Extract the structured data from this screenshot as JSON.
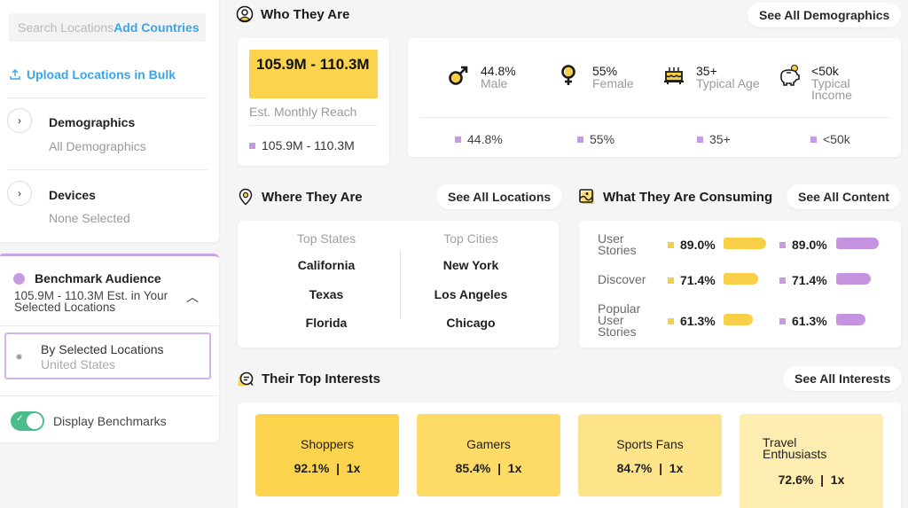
{
  "sidebar": {
    "search": {
      "placeholder": "Search Locations",
      "add_link": "Add Countries"
    },
    "upload_link": "Upload Locations in Bulk",
    "sections": [
      {
        "title": "Demographics",
        "subtitle": "All Demographics"
      },
      {
        "title": "Devices",
        "subtitle": "None Selected"
      }
    ],
    "benchmark": {
      "title": "Benchmark Audience",
      "subtitle": "105.9M - 110.3M Est. in Your Selected Locations",
      "option_title": "By Selected Locations",
      "option_sub": "United States",
      "toggle_label": "Display Benchmarks",
      "toggle_on": true
    }
  },
  "who": {
    "title": "Who They Are",
    "see_all": "See All Demographics",
    "reach": {
      "value": "105.9M - 110.3M",
      "label": "Est. Monthly Reach",
      "benchmark": "105.9M - 110.3M"
    },
    "demographics": [
      {
        "icon": "male-icon",
        "value": "44.8%",
        "label": "Male",
        "benchmark": "44.8%"
      },
      {
        "icon": "female-icon",
        "value": "55%",
        "label": "Female",
        "benchmark": "55%"
      },
      {
        "icon": "birthday-cake-icon",
        "value": "35+",
        "label": "Typical Age",
        "benchmark": "35+"
      },
      {
        "icon": "piggy-bank-icon",
        "value": "<50k",
        "label": "Typical Income",
        "benchmark": "<50k"
      }
    ]
  },
  "where": {
    "title": "Where They Are",
    "see_all": "See All Locations",
    "states_head": "Top States",
    "cities_head": "Top Cities",
    "states": [
      "California",
      "Texas",
      "Florida"
    ],
    "cities": [
      "New York",
      "Los Angeles",
      "Chicago"
    ]
  },
  "consuming": {
    "title": "What They Are Consuming",
    "see_all": "See All Content",
    "rows": [
      {
        "label": "User Stories",
        "value": "89.0%",
        "pct": 89.0,
        "benchmark": "89.0%",
        "benchmark_pct": 89.0
      },
      {
        "label": "Discover",
        "value": "71.4%",
        "pct": 71.4,
        "benchmark": "71.4%",
        "benchmark_pct": 71.4
      },
      {
        "label": "Popular User Stories",
        "value": "61.3%",
        "pct": 61.3,
        "benchmark": "61.3%",
        "benchmark_pct": 61.3
      }
    ]
  },
  "interests": {
    "title": "Their Top Interests",
    "see_all": "See All Interests",
    "tiles": [
      {
        "name": "Shoppers",
        "stat": "92.1%  |  1x",
        "color": "#fcd34d"
      },
      {
        "name": "Gamers",
        "stat": "85.4%  |  1x",
        "color": "#fddb66"
      },
      {
        "name": "Sports Fans",
        "stat": "84.7%  |  1x",
        "color": "#fde48a"
      },
      {
        "name": "Travel Enthusiasts",
        "stat": "72.6%  |  1x",
        "color": "#fdedb0"
      }
    ]
  },
  "colors": {
    "accent_blue": "#3aa5e8",
    "audience_yellow": "#fcd34d",
    "benchmark_purple": "#c69be6",
    "toggle_green": "#4bbd8c"
  }
}
